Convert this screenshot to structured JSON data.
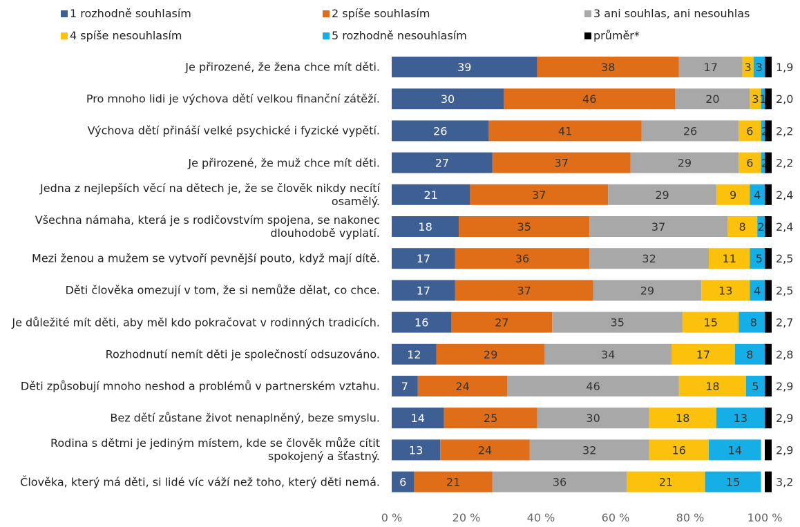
{
  "chart_data": {
    "type": "bar",
    "orientation": "horizontal",
    "stacked": true,
    "xlim": [
      0,
      100
    ],
    "x_ticks": [
      "0 %",
      "20 %",
      "40 %",
      "60 %",
      "80 %",
      "100 %"
    ],
    "legend_position": "top",
    "legend": [
      {
        "name": "1 rozhodně souhlasím",
        "color": "#3d5f94"
      },
      {
        "name": "2 spíše souhlasím",
        "color": "#e06d17"
      },
      {
        "name": "3 ani souhlas, ani nesouhlas",
        "color": "#a8a8a8"
      },
      {
        "name": "4 spíše nesouhlasím",
        "color": "#fcc10c"
      },
      {
        "name": "5 rozhodně nesouhlasím",
        "color": "#16aee6"
      },
      {
        "name": "průměr*",
        "color": "#000000"
      }
    ],
    "categories": [
      "Je přirozené, že žena chce mít děti.",
      "Pro mnoho lidi je výchova dětí velkou finanční zátěží.",
      "Výchova dětí přináší velké psychické i fyzické vypětí.",
      "Je přirozené, že muž chce mít děti.",
      "Jedna z nejlepších věcí na dětech je, že se člověk nikdy necítí osamělý.",
      "Všechna námaha, která je s rodičovstvím spojena, se nakonec dlouhodobě vyplatí.",
      "Mezi ženou a mužem se vytvoří pevnější pouto, když mají dítě.",
      "Děti člověka omezují v tom, že si nemůže dělat, co chce.",
      "Je důležité mít děti, aby měl kdo pokračovat v rodinných tradicích.",
      "Rozhodnutí nemít děti je společností odsuzováno.",
      "Děti způsobují mnoho neshod a problémů v partnerském vztahu.",
      "Bez dětí zůstane život nenaplněný, beze smyslu.",
      "Rodina s dětmi je jediným místem, kde se člověk může cítit spokojený a šťastný.",
      "Člověka, který má děti, si lidé víc váží než toho, který děti nemá."
    ],
    "series": [
      {
        "name": "1 rozhodně souhlasím",
        "values": [
          39,
          30,
          26,
          27,
          21,
          18,
          17,
          17,
          16,
          12,
          7,
          14,
          13,
          6
        ]
      },
      {
        "name": "2 spíše souhlasím",
        "values": [
          38,
          46,
          41,
          37,
          37,
          35,
          36,
          37,
          27,
          29,
          24,
          25,
          24,
          21
        ]
      },
      {
        "name": "3 ani souhlas, ani nesouhlas",
        "values": [
          17,
          20,
          26,
          29,
          29,
          37,
          32,
          29,
          35,
          34,
          46,
          30,
          32,
          36
        ]
      },
      {
        "name": "4 spíše nesouhlasím",
        "values": [
          3,
          3,
          6,
          6,
          9,
          8,
          11,
          13,
          15,
          17,
          18,
          18,
          16,
          21
        ]
      },
      {
        "name": "5 rozhodně nesouhlasím",
        "values": [
          3,
          1,
          2,
          2,
          4,
          2,
          5,
          4,
          8,
          8,
          5,
          13,
          14,
          15
        ]
      }
    ],
    "average": {
      "name": "průměr*",
      "values": [
        "1,9",
        "2,0",
        "2,2",
        "2,2",
        "2,4",
        "2,4",
        "2,5",
        "2,5",
        "2,7",
        "2,8",
        "2,9",
        "2,9",
        "2,9",
        "3,2"
      ]
    }
  }
}
